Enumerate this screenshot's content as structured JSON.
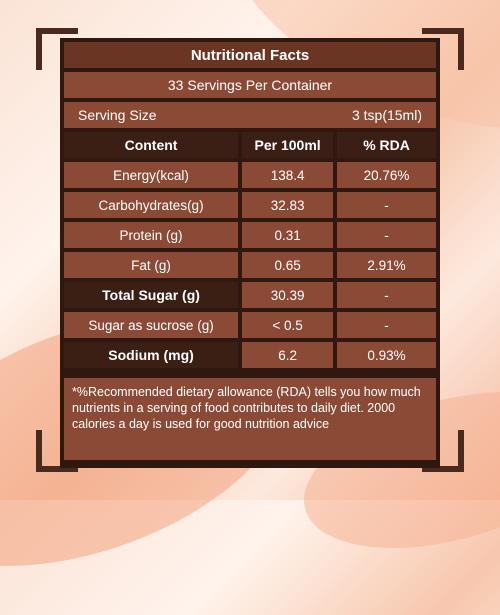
{
  "title": "Nutritional Facts",
  "servings_per_container": "33 Servings Per Container",
  "serving_size": {
    "label": "Serving Size",
    "value": "3 tsp(15ml)"
  },
  "table": {
    "headers": [
      "Content",
      "Per 100ml",
      "% RDA"
    ],
    "rows": [
      {
        "content": "Energy(kcal)",
        "per100": "138.4",
        "rda": "20.76%",
        "bold": false
      },
      {
        "content": "Carbohydrates(g)",
        "per100": "32.83",
        "rda": "-",
        "bold": false
      },
      {
        "content": "Protein (g)",
        "per100": "0.31",
        "rda": "-",
        "bold": false
      },
      {
        "content": "Fat (g)",
        "per100": "0.65",
        "rda": "2.91%",
        "bold": false
      },
      {
        "content": "Total Sugar (g)",
        "per100": "30.39",
        "rda": "-",
        "bold": true
      },
      {
        "content": "Sugar as sucrose (g)",
        "per100": "< 0.5",
        "rda": "-",
        "bold": false
      },
      {
        "content": "Sodium (mg)",
        "per100": "6.2",
        "rda": "0.93%",
        "bold": true
      }
    ]
  },
  "note": "*%Recommended dietary allowance (RDA) tells you how much nutrients in a serving of food contributes to daily diet. 2000 calories a day is used for good nutrition advice",
  "colors": {
    "dark": "#2f1810",
    "cell": "#8a4a36",
    "title": "#6b3524"
  }
}
